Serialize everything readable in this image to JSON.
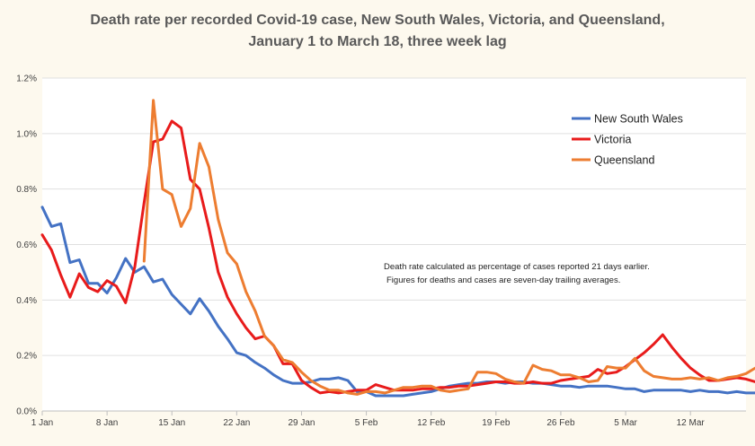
{
  "chart_data": {
    "type": "line",
    "title_line1": "Death rate per recorded Covid-19 case, New South Wales, Victoria, and Queensland,",
    "title_line2": "January 1 to March 18, three week lag",
    "xlabel": "",
    "ylabel": "",
    "ylim": [
      0,
      1.2
    ],
    "y_ticks": [
      "0.0%",
      "0.2%",
      "0.4%",
      "0.6%",
      "0.8%",
      "1.0%",
      "1.2%"
    ],
    "x_tick_labels": [
      "1 Jan",
      "8 Jan",
      "15 Jan",
      "22 Jan",
      "29 Jan",
      "5 Feb",
      "12 Feb",
      "19 Feb",
      "26 Feb",
      "5 Mar",
      "12 Mar"
    ],
    "x_tick_days": [
      0,
      7,
      14,
      21,
      28,
      35,
      42,
      49,
      56,
      63,
      70
    ],
    "x_range_days": [
      0,
      76
    ],
    "grid": "horizontal",
    "legend_position": "top-right",
    "annotation_line1": "Death rate calculated as percentage of cases reported 21 days earlier.",
    "annotation_line2": "Figures for deaths and cases are seven-day trailing averages.",
    "series": [
      {
        "name": "New South Wales",
        "color": "#4472c4",
        "start_day": 0,
        "values": [
          0.735,
          0.665,
          0.675,
          0.535,
          0.545,
          0.46,
          0.46,
          0.425,
          0.48,
          0.55,
          0.5,
          0.52,
          0.465,
          0.475,
          0.42,
          0.385,
          0.35,
          0.405,
          0.36,
          0.305,
          0.26,
          0.21,
          0.2,
          0.175,
          0.155,
          0.13,
          0.11,
          0.1,
          0.1,
          0.105,
          0.115,
          0.115,
          0.12,
          0.11,
          0.07,
          0.07,
          0.055,
          0.055,
          0.055,
          0.055,
          0.06,
          0.065,
          0.07,
          0.08,
          0.09,
          0.095,
          0.1,
          0.1,
          0.105,
          0.105,
          0.1,
          0.105,
          0.105,
          0.1,
          0.1,
          0.095,
          0.09,
          0.09,
          0.085,
          0.09,
          0.09,
          0.09,
          0.085,
          0.08,
          0.08,
          0.07,
          0.075,
          0.075,
          0.075,
          0.075,
          0.07,
          0.075,
          0.07,
          0.07,
          0.065,
          0.07,
          0.065,
          0.065,
          0.065,
          0.06,
          0.065
        ]
      },
      {
        "name": "Victoria",
        "color": "#e81b1b",
        "start_day": 0,
        "values": [
          0.635,
          0.58,
          0.49,
          0.41,
          0.495,
          0.445,
          0.43,
          0.47,
          0.45,
          0.39,
          0.52,
          0.75,
          0.97,
          0.98,
          1.045,
          1.02,
          0.835,
          0.8,
          0.66,
          0.5,
          0.41,
          0.35,
          0.3,
          0.26,
          0.27,
          0.235,
          0.17,
          0.17,
          0.11,
          0.085,
          0.065,
          0.07,
          0.065,
          0.07,
          0.075,
          0.075,
          0.095,
          0.085,
          0.075,
          0.075,
          0.075,
          0.08,
          0.08,
          0.085,
          0.085,
          0.09,
          0.09,
          0.095,
          0.1,
          0.105,
          0.105,
          0.1,
          0.1,
          0.105,
          0.1,
          0.1,
          0.11,
          0.115,
          0.12,
          0.125,
          0.15,
          0.135,
          0.14,
          0.16,
          0.185,
          0.21,
          0.24,
          0.275,
          0.23,
          0.19,
          0.155,
          0.13,
          0.11,
          0.11,
          0.115,
          0.12,
          0.115,
          0.105,
          0.095,
          0.1,
          0.1
        ]
      },
      {
        "name": "Queensland",
        "color": "#ed7d31",
        "start_day": 11,
        "values": [
          0.54,
          1.12,
          0.8,
          0.78,
          0.665,
          0.73,
          0.965,
          0.88,
          0.69,
          0.57,
          0.53,
          0.43,
          0.36,
          0.27,
          0.235,
          0.185,
          0.175,
          0.14,
          0.11,
          0.09,
          0.075,
          0.075,
          0.065,
          0.06,
          0.07,
          0.07,
          0.065,
          0.075,
          0.085,
          0.085,
          0.09,
          0.09,
          0.075,
          0.07,
          0.075,
          0.08,
          0.14,
          0.14,
          0.135,
          0.115,
          0.105,
          0.1,
          0.165,
          0.15,
          0.145,
          0.13,
          0.13,
          0.12,
          0.105,
          0.11,
          0.16,
          0.155,
          0.155,
          0.19,
          0.145,
          0.125,
          0.12,
          0.115,
          0.115,
          0.12,
          0.115,
          0.12,
          0.11,
          0.12,
          0.125,
          0.135,
          0.155
        ]
      }
    ]
  }
}
